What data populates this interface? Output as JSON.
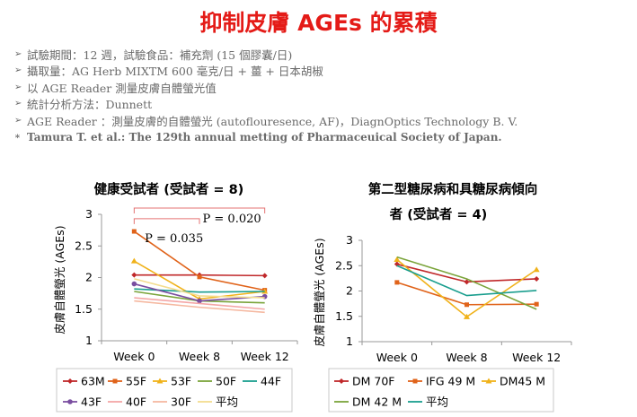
{
  "title": "抑制皮膚 AGEs 的累積",
  "bullets": [
    {
      "marker": "➢",
      "text": "試驗期間：12 週，試驗食品：補充劑 (15 個膠囊/日)"
    },
    {
      "marker": "➢",
      "text": "攝取量：AG Herb MIXTM 600 毫克/日 + 薑 + 日本胡椒"
    },
    {
      "marker": "➢",
      "text": "以 AGE Reader 測量皮膚自體螢光值"
    },
    {
      "marker": "➢",
      "text": "統計分析方法：Dunnett"
    },
    {
      "marker": "➢",
      "text": "AGE Reader ：測量皮膚的自體螢光 (autoflouresence, AF)，DiagnOptics Technology B. V."
    },
    {
      "marker": "∗",
      "text": "Tamura T. et al.: The 129th annual metting of Pharmaceuical Society of Japan.",
      "note": true
    }
  ],
  "chart_data": [
    {
      "type": "line",
      "title": "健康受試者 (受試者 = 8)",
      "ylabel": "皮膚自體螢光 (AGEs)",
      "categories": [
        "Week 0",
        "Week 8",
        "Week 12"
      ],
      "ylim": [
        1,
        3
      ],
      "yticks": [
        "1",
        "1.5",
        "2",
        "2.5",
        "3"
      ],
      "grid": false,
      "legend_position": "bottom",
      "series": [
        {
          "name": "63M",
          "color": "#c0282a",
          "marker": "diamond",
          "values": [
            2.04,
            2.04,
            2.03
          ]
        },
        {
          "name": "55F",
          "color": "#e0631a",
          "marker": "square",
          "values": [
            2.73,
            2.01,
            1.8
          ]
        },
        {
          "name": "53F",
          "color": "#f0b21a",
          "marker": "triangle",
          "values": [
            2.26,
            1.66,
            1.78
          ]
        },
        {
          "name": "50F",
          "color": "#7aa43a",
          "marker": "none",
          "values": [
            1.78,
            1.63,
            1.6
          ]
        },
        {
          "name": "44F",
          "color": "#1a9e8e",
          "marker": "none",
          "values": [
            1.82,
            1.77,
            1.78
          ]
        },
        {
          "name": "43F",
          "color": "#7a4ea0",
          "marker": "circle",
          "values": [
            1.9,
            1.63,
            1.7
          ]
        },
        {
          "name": "40F",
          "color": "#f4a6a6",
          "marker": "none",
          "values": [
            1.68,
            1.59,
            1.5
          ]
        },
        {
          "name": "30F",
          "color": "#f5b8a0",
          "marker": "none",
          "values": [
            1.63,
            1.53,
            1.45
          ]
        },
        {
          "name": "平均",
          "color": "#f3dc8e",
          "marker": "none",
          "values": [
            1.98,
            1.71,
            1.68
          ]
        }
      ],
      "annotations": [
        {
          "text": "P = 0.035",
          "from": "Week 0",
          "to": "Week 8",
          "y": 2.93,
          "color": "#e57373"
        },
        {
          "text": "P = 0.020",
          "from": "Week 0",
          "to": "Week 12",
          "y": 3.1,
          "color": "#e57373"
        }
      ]
    },
    {
      "type": "line",
      "title": "第二型糖尿病和具糖尿病傾向",
      "subtitle": "者 (受試者 = 4)",
      "ylabel": "皮膚自體螢光 (AGEs)",
      "categories": [
        "Week 0",
        "Week 8",
        "Week 12"
      ],
      "ylim": [
        1,
        3
      ],
      "yticks": [
        "1",
        "1.5",
        "2",
        "2.5",
        "3"
      ],
      "grid": false,
      "legend_position": "bottom",
      "series": [
        {
          "name": "DM 70F",
          "color": "#c0282a",
          "marker": "diamond",
          "values": [
            2.53,
            2.18,
            2.24
          ]
        },
        {
          "name": "IFG 49 M",
          "color": "#e0631a",
          "marker": "square",
          "values": [
            2.17,
            1.73,
            1.74
          ]
        },
        {
          "name": "DM45 M",
          "color": "#f0b21a",
          "marker": "triangle",
          "values": [
            2.62,
            1.49,
            2.42
          ]
        },
        {
          "name": "DM 42 M",
          "color": "#7aa43a",
          "marker": "none",
          "values": [
            2.67,
            2.24,
            1.64
          ]
        },
        {
          "name": "平均",
          "color": "#1a9e8e",
          "marker": "none",
          "values": [
            2.5,
            1.91,
            2.01
          ]
        }
      ]
    }
  ]
}
